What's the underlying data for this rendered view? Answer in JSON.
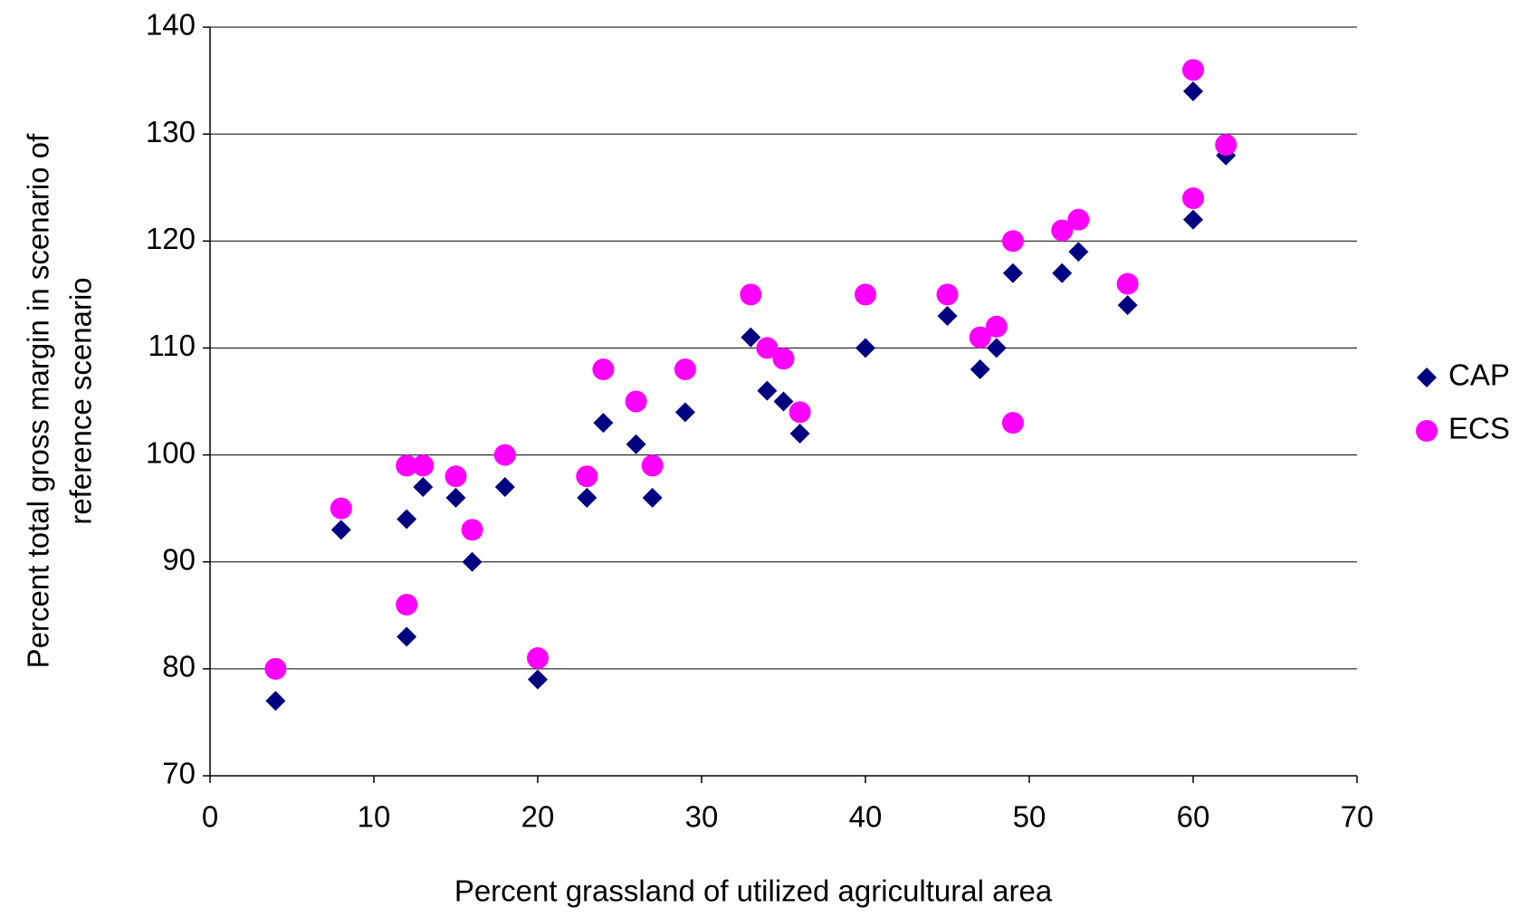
{
  "chart_data": {
    "type": "scatter",
    "xlabel": "Percent grassland of utilized agricultural area",
    "ylabel": [
      "Percent total gross margin in scenario of",
      "reference scenario"
    ],
    "xlim": [
      0,
      70
    ],
    "xticks": [
      0,
      10,
      20,
      30,
      40,
      50,
      60,
      70
    ],
    "ylim": [
      70,
      140
    ],
    "yticks": [
      70,
      80,
      90,
      100,
      110,
      120,
      130,
      140
    ],
    "grid": true,
    "legend": "right",
    "series": [
      {
        "name": "CAP",
        "color": "#000080",
        "marker": "diamond",
        "x": [
          4,
          8,
          12,
          12,
          13,
          15,
          16,
          18,
          20,
          23,
          24,
          26,
          27,
          29,
          33,
          34,
          35,
          36,
          40,
          45,
          47,
          48,
          49,
          52,
          53,
          56,
          60,
          60,
          62
        ],
        "values": [
          77,
          93,
          94,
          83,
          97,
          96,
          90,
          97,
          79,
          96,
          103,
          101,
          96,
          104,
          111,
          106,
          105,
          102,
          110,
          113,
          108,
          110,
          117,
          117,
          119,
          114,
          134,
          122,
          128
        ]
      },
      {
        "name": "ECS",
        "color": "#ff00ff",
        "marker": "circle",
        "x": [
          4,
          8,
          12,
          12,
          13,
          15,
          16,
          18,
          20,
          23,
          24,
          26,
          27,
          29,
          33,
          34,
          35,
          36,
          40,
          45,
          47,
          48,
          49,
          49,
          52,
          53,
          56,
          60,
          60,
          62
        ],
        "values": [
          80,
          95,
          99,
          86,
          99,
          98,
          93,
          100,
          81,
          98,
          108,
          105,
          99,
          108,
          115,
          110,
          109,
          104,
          115,
          115,
          111,
          112,
          120,
          103,
          121,
          122,
          116,
          136,
          124,
          129
        ]
      }
    ]
  }
}
